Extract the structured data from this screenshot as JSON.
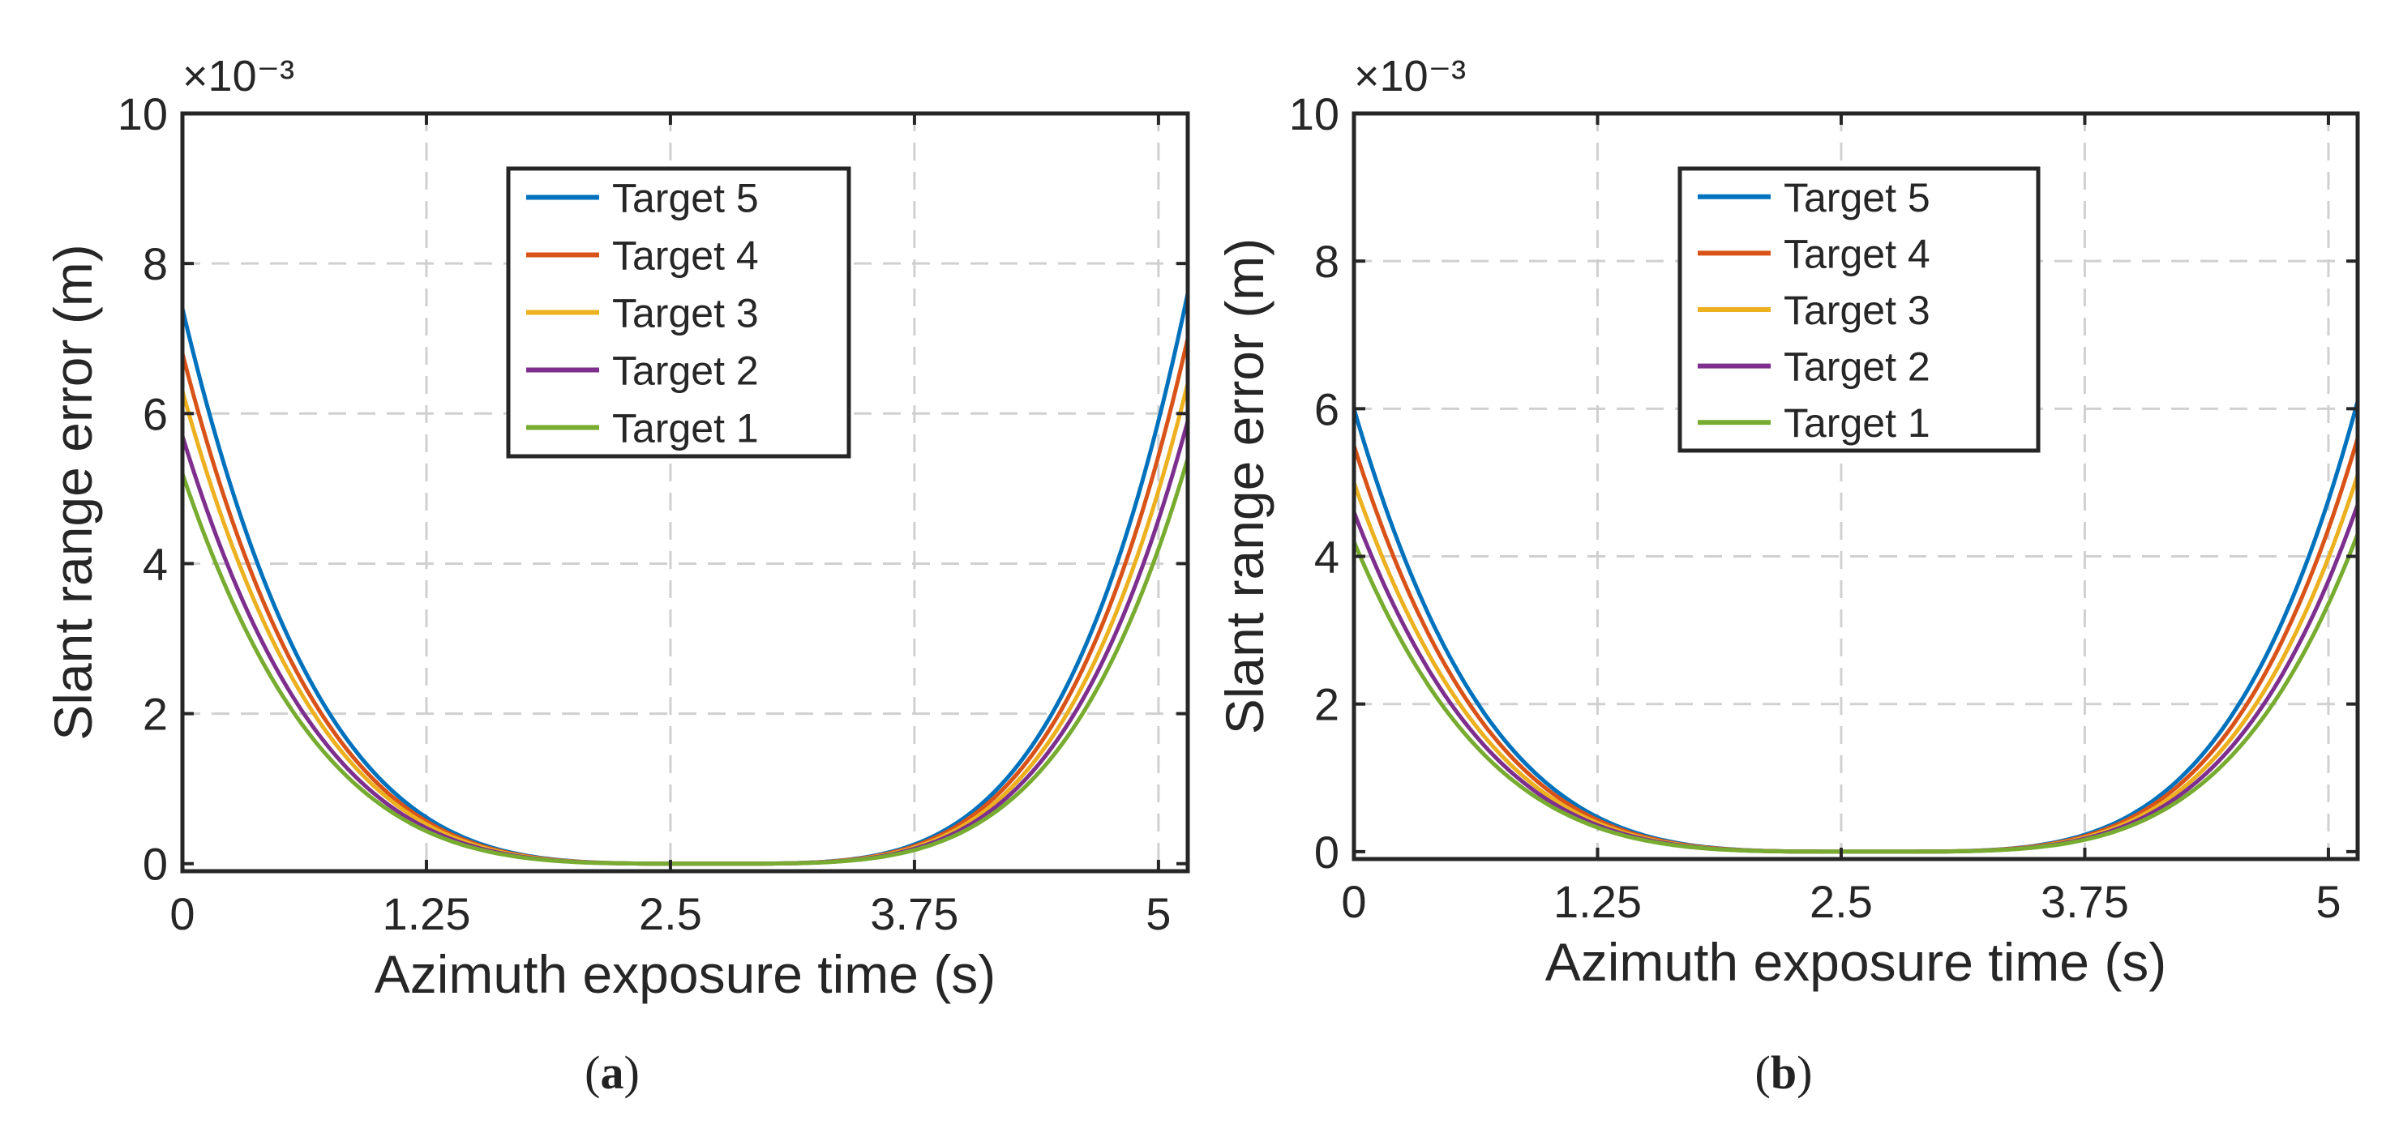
{
  "figure": {
    "caption_a": "a",
    "caption_b": "b"
  },
  "chart_data": [
    {
      "type": "line",
      "panel": "a",
      "xlabel": "Azimuth exposure time (s)",
      "ylabel": "Slant range error (m)",
      "y_exponent_label": "×10⁻³",
      "xlim": [
        0,
        5.15
      ],
      "ylim": [
        -0.1,
        10
      ],
      "xticks": [
        0,
        1.25,
        2.5,
        3.75,
        5
      ],
      "xtick_labels": [
        "0",
        "1.25",
        "2.5",
        "3.75",
        "5"
      ],
      "yticks": [
        0,
        2,
        4,
        6,
        8,
        10
      ],
      "ytick_labels": [
        "0",
        "2",
        "4",
        "6",
        "8",
        "10"
      ],
      "grid": true,
      "legend_position": "top-center",
      "series": [
        {
          "name": "Target 5",
          "color": "#0072BD",
          "start": 7.4,
          "end": 7.6,
          "center": 2.7,
          "power": 4
        },
        {
          "name": "Target 4",
          "color": "#D95319",
          "start": 6.8,
          "end": 7.0,
          "center": 2.7,
          "power": 4
        },
        {
          "name": "Target 3",
          "color": "#EDB120",
          "start": 6.3,
          "end": 6.4,
          "center": 2.7,
          "power": 4
        },
        {
          "name": "Target 2",
          "color": "#7E2F8E",
          "start": 5.7,
          "end": 5.9,
          "center": 2.7,
          "power": 4
        },
        {
          "name": "Target 1",
          "color": "#77AC30",
          "start": 5.2,
          "end": 5.4,
          "center": 2.7,
          "power": 4
        }
      ]
    },
    {
      "type": "line",
      "panel": "b",
      "xlabel": "Azimuth exposure time (s)",
      "ylabel": "Slant range error (m)",
      "y_exponent_label": "×10⁻³",
      "xlim": [
        0,
        5.15
      ],
      "ylim": [
        -0.1,
        10
      ],
      "xticks": [
        0,
        1.25,
        2.5,
        3.75,
        5
      ],
      "xtick_labels": [
        "0",
        "1.25",
        "2.5",
        "3.75",
        "5"
      ],
      "yticks": [
        0,
        2,
        4,
        6,
        8,
        10
      ],
      "ytick_labels": [
        "0",
        "2",
        "4",
        "6",
        "8",
        "10"
      ],
      "grid": true,
      "legend_position": "top-center",
      "series": [
        {
          "name": "Target 5",
          "color": "#0072BD",
          "start": 6.0,
          "end": 6.1,
          "center": 2.65,
          "power": 4
        },
        {
          "name": "Target 4",
          "color": "#D95319",
          "start": 5.5,
          "end": 5.6,
          "center": 2.65,
          "power": 4
        },
        {
          "name": "Target 3",
          "color": "#EDB120",
          "start": 5.0,
          "end": 5.1,
          "center": 2.65,
          "power": 4
        },
        {
          "name": "Target 2",
          "color": "#7E2F8E",
          "start": 4.6,
          "end": 4.7,
          "center": 2.65,
          "power": 4
        },
        {
          "name": "Target 1",
          "color": "#77AC30",
          "start": 4.2,
          "end": 4.3,
          "center": 2.65,
          "power": 4
        }
      ]
    }
  ]
}
